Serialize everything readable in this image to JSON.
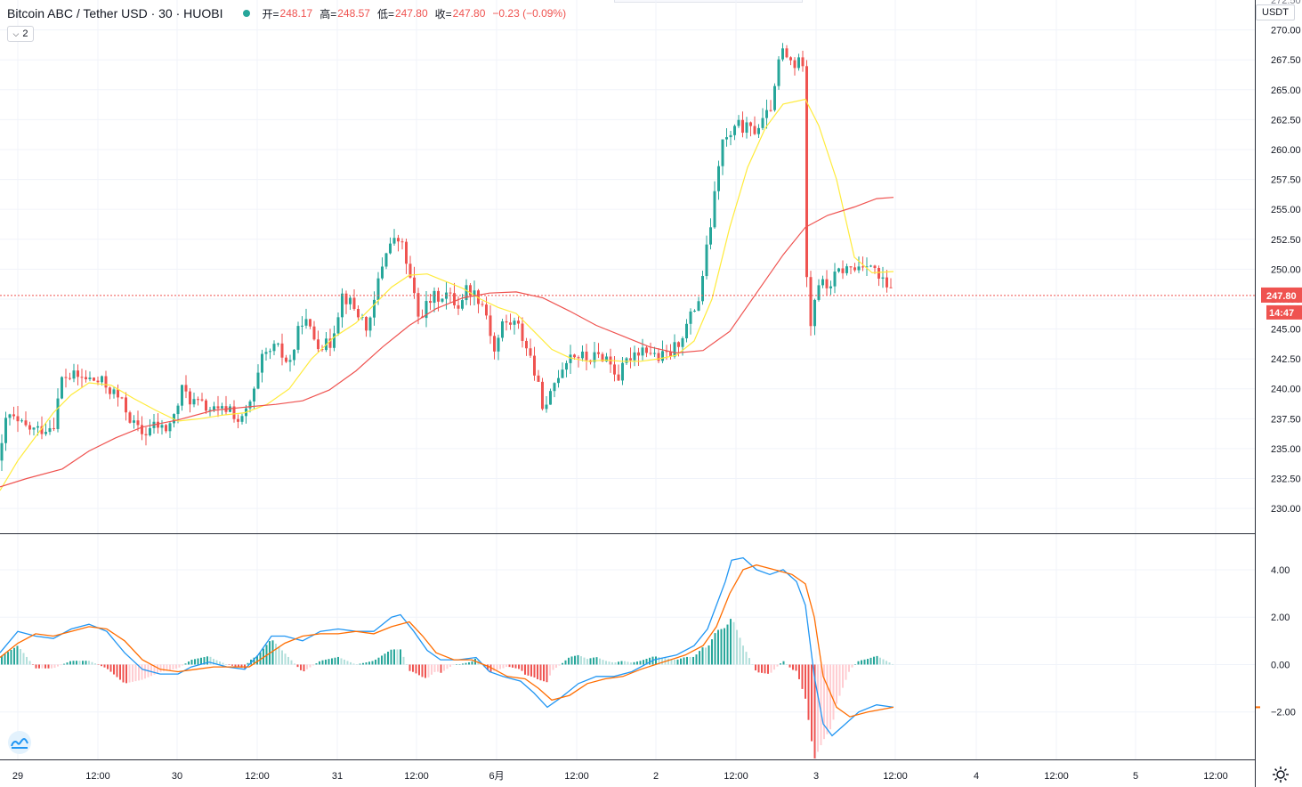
{
  "header": {
    "symbol": "Bitcoin ABC / Tether USD · 30 · HUOBI",
    "open_label": "开=",
    "open_value": "248.17",
    "high_label": "高=",
    "high_value": "248.57",
    "low_label": "低=",
    "low_value": "247.80",
    "close_label": "收=",
    "close_value": "247.80",
    "change": "−0.23 (−0.09%)"
  },
  "indicator_button": {
    "label": "2"
  },
  "currency_badge": "USDT",
  "colors": {
    "up": "#26a69a",
    "down": "#ef5350",
    "ma_fast": "#ffeb3b",
    "ma_slow": "#ef5350",
    "macd_line": "#2196f3",
    "signal_line": "#ff6d00",
    "hist_up_strong": "#26a69a",
    "hist_up_weak": "#b2dfdb",
    "hist_down_strong": "#ef5350",
    "hist_down_weak": "#ffcdd2",
    "price_label_bg": "#ef5350"
  },
  "chart_data": [
    {
      "type": "candlestick",
      "title": "Bitcoin ABC / Tether USD · 30 · HUOBI",
      "ylim": [
        228,
        272.5
      ],
      "yticks": [
        "230.00",
        "232.50",
        "235.00",
        "237.50",
        "240.00",
        "242.50",
        "245.00",
        "247.50",
        "250.00",
        "252.50",
        "255.00",
        "257.50",
        "260.00",
        "262.50",
        "265.00",
        "267.50",
        "270.00"
      ],
      "y_top_partial": "272.50",
      "current_price": "247.80",
      "countdown": "14:47",
      "grid": true,
      "x_tick_labels": [
        "29",
        "12:00",
        "30",
        "12:00",
        "31",
        "12:00",
        "6月",
        "12:00",
        "2",
        "12:00",
        "3",
        "12:00",
        "4",
        "12:00",
        "5",
        "12:00"
      ],
      "price_path": [
        [
          0,
          234.0
        ],
        [
          8,
          238.0
        ],
        [
          20,
          237.0
        ],
        [
          40,
          236.5
        ],
        [
          60,
          237.0
        ],
        [
          70,
          241.0
        ],
        [
          84,
          241.0
        ],
        [
          100,
          240.8
        ],
        [
          115,
          240.5
        ],
        [
          130,
          239.5
        ],
        [
          140,
          238.5
        ],
        [
          150,
          237.0
        ],
        [
          160,
          236.2
        ],
        [
          175,
          237.0
        ],
        [
          185,
          236.5
        ],
        [
          195,
          237.5
        ],
        [
          205,
          240.0
        ],
        [
          215,
          239.0
        ],
        [
          230,
          238.5
        ],
        [
          245,
          238.0
        ],
        [
          258,
          238.5
        ],
        [
          270,
          237.0
        ],
        [
          285,
          239.5
        ],
        [
          295,
          242.5
        ],
        [
          310,
          243.5
        ],
        [
          325,
          242.0
        ],
        [
          340,
          246.0
        ],
        [
          355,
          244.0
        ],
        [
          370,
          243.5
        ],
        [
          385,
          248.0
        ],
        [
          400,
          246.5
        ],
        [
          415,
          245.0
        ],
        [
          425,
          249.0
        ],
        [
          435,
          252.0
        ],
        [
          450,
          252.5
        ],
        [
          460,
          249.5
        ],
        [
          470,
          246.0
        ],
        [
          485,
          247.5
        ],
        [
          500,
          248.0
        ],
        [
          515,
          247.0
        ],
        [
          525,
          248.5
        ],
        [
          540,
          247.5
        ],
        [
          548,
          246.0
        ],
        [
          555,
          243.0
        ],
        [
          565,
          245.5
        ],
        [
          580,
          245.5
        ],
        [
          595,
          243.0
        ],
        [
          605,
          240.0
        ],
        [
          613,
          238.0
        ],
        [
          625,
          241.0
        ],
        [
          640,
          243.0
        ],
        [
          660,
          242.5
        ],
        [
          680,
          242.8
        ],
        [
          695,
          241.0
        ],
        [
          710,
          243.0
        ],
        [
          725,
          243.5
        ],
        [
          740,
          242.5
        ],
        [
          755,
          243.0
        ],
        [
          770,
          245.0
        ],
        [
          785,
          247.5
        ],
        [
          795,
          252.0
        ],
        [
          803,
          256.0
        ],
        [
          810,
          260.5
        ],
        [
          820,
          261.0
        ],
        [
          830,
          262.0
        ],
        [
          845,
          261.5
        ],
        [
          860,
          262.5
        ],
        [
          870,
          264.5
        ],
        [
          877,
          268.5
        ],
        [
          885,
          267.5
        ],
        [
          895,
          267.0
        ],
        [
          902,
          267.5
        ],
        [
          905,
          252.0
        ],
        [
          910,
          245.0
        ],
        [
          918,
          249.0
        ],
        [
          930,
          248.5
        ],
        [
          945,
          250.0
        ],
        [
          960,
          250.0
        ],
        [
          975,
          250.8
        ],
        [
          985,
          249.5
        ],
        [
          995,
          248.5
        ],
        [
          1004,
          247.8
        ]
      ],
      "series": [
        {
          "name": "",
          "color": "#ffeb3b",
          "points": [
            [
              0,
              231.5
            ],
            [
              20,
              234.0
            ],
            [
              40,
              236.0
            ],
            [
              60,
              238.0
            ],
            [
              80,
              239.5
            ],
            [
              100,
              240.5
            ],
            [
              125,
              240.3
            ],
            [
              150,
              239.2
            ],
            [
              175,
              238.2
            ],
            [
              200,
              237.3
            ],
            [
              225,
              237.5
            ],
            [
              250,
              237.8
            ],
            [
              275,
              238.0
            ],
            [
              300,
              238.7
            ],
            [
              325,
              240.0
            ],
            [
              350,
              242.5
            ],
            [
              375,
              244.3
            ],
            [
              400,
              245.5
            ],
            [
              420,
              247.0
            ],
            [
              440,
              248.5
            ],
            [
              460,
              249.5
            ],
            [
              480,
              249.6
            ],
            [
              500,
              249.0
            ],
            [
              520,
              248.4
            ],
            [
              540,
              247.5
            ],
            [
              560,
              246.8
            ],
            [
              580,
              246.3
            ],
            [
              600,
              244.8
            ],
            [
              620,
              243.3
            ],
            [
              640,
              242.6
            ],
            [
              660,
              242.3
            ],
            [
              680,
              242.4
            ],
            [
              700,
              242.3
            ],
            [
              720,
              242.3
            ],
            [
              740,
              242.5
            ],
            [
              760,
              242.8
            ],
            [
              780,
              244.0
            ],
            [
              800,
              247.5
            ],
            [
              820,
              253.5
            ],
            [
              840,
              258.5
            ],
            [
              860,
              261.8
            ],
            [
              880,
              263.8
            ],
            [
              905,
              264.2
            ],
            [
              920,
              262.0
            ],
            [
              940,
              257.5
            ],
            [
              960,
              251.0
            ],
            [
              980,
              249.7
            ],
            [
              1004,
              249.8
            ]
          ]
        },
        {
          "name": "",
          "color": "#ef5350",
          "points": [
            [
              0,
              231.8
            ],
            [
              30,
              232.5
            ],
            [
              70,
              233.3
            ],
            [
              100,
              234.8
            ],
            [
              130,
              235.9
            ],
            [
              160,
              236.8
            ],
            [
              200,
              237.4
            ],
            [
              240,
              238.2
            ],
            [
              280,
              238.5
            ],
            [
              310,
              238.7
            ],
            [
              340,
              239.0
            ],
            [
              370,
              239.9
            ],
            [
              400,
              241.5
            ],
            [
              430,
              243.5
            ],
            [
              460,
              245.3
            ],
            [
              490,
              246.7
            ],
            [
              520,
              247.6
            ],
            [
              550,
              248.0
            ],
            [
              580,
              248.1
            ],
            [
              610,
              247.6
            ],
            [
              640,
              246.5
            ],
            [
              670,
              245.3
            ],
            [
              700,
              244.4
            ],
            [
              730,
              243.5
            ],
            [
              760,
              243.0
            ],
            [
              790,
              243.2
            ],
            [
              820,
              244.8
            ],
            [
              850,
              248.0
            ],
            [
              880,
              251.2
            ],
            [
              905,
              253.5
            ],
            [
              930,
              254.5
            ],
            [
              960,
              255.2
            ],
            [
              985,
              255.9
            ],
            [
              1004,
              256.0
            ]
          ]
        }
      ]
    },
    {
      "type": "line",
      "title": "",
      "ylim": [
        -4.0,
        5.5
      ],
      "yticks": [
        "4.00",
        "2.00",
        "0.00",
        "−2.00"
      ],
      "series": [
        {
          "name": "",
          "color": "#2196f3",
          "points": [
            [
              0,
              0.5
            ],
            [
              20,
              1.4
            ],
            [
              40,
              1.2
            ],
            [
              60,
              1.1
            ],
            [
              80,
              1.5
            ],
            [
              100,
              1.7
            ],
            [
              120,
              1.4
            ],
            [
              140,
              0.5
            ],
            [
              160,
              -0.2
            ],
            [
              180,
              -0.4
            ],
            [
              200,
              -0.4
            ],
            [
              215,
              -0.1
            ],
            [
              235,
              0.1
            ],
            [
              255,
              -0.1
            ],
            [
              275,
              -0.2
            ],
            [
              290,
              0.4
            ],
            [
              305,
              1.2
            ],
            [
              320,
              1.2
            ],
            [
              340,
              1.0
            ],
            [
              360,
              1.4
            ],
            [
              380,
              1.5
            ],
            [
              400,
              1.4
            ],
            [
              420,
              1.4
            ],
            [
              440,
              2.0
            ],
            [
              450,
              2.1
            ],
            [
              465,
              1.4
            ],
            [
              480,
              0.6
            ],
            [
              495,
              0.2
            ],
            [
              515,
              0.2
            ],
            [
              535,
              0.3
            ],
            [
              550,
              -0.3
            ],
            [
              565,
              -0.5
            ],
            [
              585,
              -0.7
            ],
            [
              600,
              -1.2
            ],
            [
              615,
              -1.8
            ],
            [
              630,
              -1.4
            ],
            [
              650,
              -0.8
            ],
            [
              670,
              -0.5
            ],
            [
              690,
              -0.5
            ],
            [
              710,
              -0.3
            ],
            [
              735,
              0.2
            ],
            [
              760,
              0.4
            ],
            [
              780,
              0.8
            ],
            [
              795,
              1.5
            ],
            [
              805,
              2.5
            ],
            [
              815,
              3.5
            ],
            [
              822,
              4.4
            ],
            [
              835,
              4.5
            ],
            [
              850,
              4.0
            ],
            [
              865,
              3.8
            ],
            [
              880,
              4.0
            ],
            [
              895,
              3.5
            ],
            [
              905,
              2.5
            ],
            [
              915,
              -0.5
            ],
            [
              925,
              -2.5
            ],
            [
              935,
              -3.0
            ],
            [
              950,
              -2.5
            ],
            [
              965,
              -2.0
            ],
            [
              985,
              -1.7
            ],
            [
              1004,
              -1.8
            ]
          ]
        },
        {
          "name": "",
          "color": "#ff6d00",
          "points": [
            [
              0,
              0.3
            ],
            [
              20,
              0.9
            ],
            [
              40,
              1.3
            ],
            [
              60,
              1.2
            ],
            [
              80,
              1.4
            ],
            [
              100,
              1.6
            ],
            [
              120,
              1.5
            ],
            [
              140,
              1.0
            ],
            [
              160,
              0.2
            ],
            [
              180,
              -0.2
            ],
            [
              200,
              -0.3
            ],
            [
              220,
              -0.2
            ],
            [
              240,
              -0.1
            ],
            [
              260,
              -0.1
            ],
            [
              280,
              -0.1
            ],
            [
              300,
              0.4
            ],
            [
              320,
              0.9
            ],
            [
              340,
              1.2
            ],
            [
              360,
              1.3
            ],
            [
              380,
              1.3
            ],
            [
              400,
              1.4
            ],
            [
              420,
              1.3
            ],
            [
              440,
              1.6
            ],
            [
              460,
              1.8
            ],
            [
              475,
              1.2
            ],
            [
              490,
              0.5
            ],
            [
              510,
              0.2
            ],
            [
              530,
              0.2
            ],
            [
              550,
              -0.1
            ],
            [
              570,
              -0.5
            ],
            [
              590,
              -0.6
            ],
            [
              605,
              -1.0
            ],
            [
              620,
              -1.5
            ],
            [
              640,
              -1.3
            ],
            [
              660,
              -0.8
            ],
            [
              680,
              -0.6
            ],
            [
              700,
              -0.5
            ],
            [
              720,
              -0.2
            ],
            [
              745,
              0.1
            ],
            [
              770,
              0.4
            ],
            [
              790,
              0.8
            ],
            [
              805,
              1.6
            ],
            [
              820,
              3.0
            ],
            [
              835,
              4.0
            ],
            [
              850,
              4.2
            ],
            [
              870,
              4.0
            ],
            [
              890,
              3.8
            ],
            [
              905,
              3.4
            ],
            [
              915,
              2.0
            ],
            [
              925,
              -0.5
            ],
            [
              940,
              -1.8
            ],
            [
              955,
              -2.2
            ],
            [
              975,
              -2.0
            ],
            [
              1004,
              -1.8
            ]
          ]
        }
      ]
    }
  ]
}
